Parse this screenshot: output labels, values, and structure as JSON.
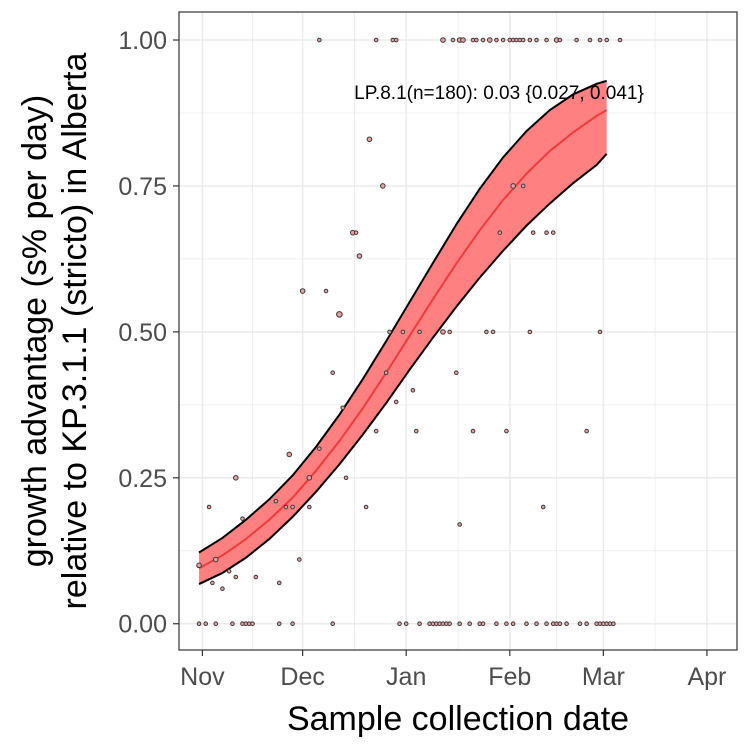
{
  "chart_data": {
    "type": "scatter",
    "xlabel": "Sample collection date",
    "ylabel_line1": "growth advantage (s% per day)",
    "ylabel_line2": "relative to KP.3.1.1 (stricto) in Alberta",
    "annotation": "LP.8.1(n=180): 0.03 {0.027, 0.041}",
    "x_ticks": [
      {
        "label": "Nov",
        "date": "2024-11-01"
      },
      {
        "label": "Dec",
        "date": "2024-12-01"
      },
      {
        "label": "Jan",
        "date": "2025-01-01"
      },
      {
        "label": "Feb",
        "date": "2025-02-01"
      },
      {
        "label": "Mar",
        "date": "2025-03-01"
      },
      {
        "label": "Apr",
        "date": "2025-04-01"
      }
    ],
    "xlim": [
      "2024-10-25",
      "2025-04-10"
    ],
    "y_ticks": [
      0.0,
      0.25,
      0.5,
      0.75,
      1.0
    ],
    "y_tick_labels": [
      "0.00",
      "0.25",
      "0.50",
      "0.75",
      "1.00"
    ],
    "ylim": [
      -0.045,
      1.048
    ],
    "grid": true,
    "colors": {
      "ribbon": "#ff8080",
      "fit_line": "#f03c3c",
      "band_edge": "#000000",
      "points": "#e8a0a0",
      "grid": "#ebebeb",
      "panel_border": "#333333"
    },
    "fit": {
      "date": [
        "2024-10-31",
        "2024-11-07",
        "2024-11-14",
        "2024-11-21",
        "2024-11-28",
        "2024-12-05",
        "2024-12-12",
        "2024-12-19",
        "2024-12-26",
        "2025-01-02",
        "2025-01-09",
        "2025-01-16",
        "2025-01-23",
        "2025-01-30",
        "2025-02-06",
        "2025-02-13",
        "2025-02-20",
        "2025-02-27",
        "2025-03-02"
      ],
      "mid": [
        0.095,
        0.117,
        0.145,
        0.178,
        0.216,
        0.262,
        0.313,
        0.369,
        0.43,
        0.493,
        0.556,
        0.617,
        0.674,
        0.726,
        0.771,
        0.81,
        0.842,
        0.87,
        0.88
      ],
      "lower": [
        0.068,
        0.087,
        0.113,
        0.145,
        0.183,
        0.226,
        0.273,
        0.324,
        0.378,
        0.435,
        0.49,
        0.543,
        0.593,
        0.639,
        0.682,
        0.72,
        0.755,
        0.786,
        0.805
      ],
      "upper": [
        0.122,
        0.147,
        0.178,
        0.213,
        0.254,
        0.303,
        0.358,
        0.419,
        0.484,
        0.551,
        0.618,
        0.684,
        0.745,
        0.799,
        0.844,
        0.88,
        0.907,
        0.925,
        0.93
      ]
    },
    "points": [
      {
        "date": "2024-10-31",
        "y": 0.0,
        "n": 1
      },
      {
        "date": "2024-11-02",
        "y": 0.0,
        "n": 1
      },
      {
        "date": "2024-11-03",
        "y": 0.2,
        "n": 1
      },
      {
        "date": "2024-11-05",
        "y": 0.0,
        "n": 1
      },
      {
        "date": "2024-11-10",
        "y": 0.0,
        "n": 1
      },
      {
        "date": "2024-11-13",
        "y": 0.0,
        "n": 1
      },
      {
        "date": "2024-11-14",
        "y": 0.0,
        "n": 1
      },
      {
        "date": "2024-11-15",
        "y": 0.0,
        "n": 1
      },
      {
        "date": "2024-11-16",
        "y": 0.0,
        "n": 1
      },
      {
        "date": "2024-11-24",
        "y": 0.0,
        "n": 1
      },
      {
        "date": "2024-11-28",
        "y": 0.0,
        "n": 1
      },
      {
        "date": "2024-12-10",
        "y": 0.0,
        "n": 1
      },
      {
        "date": "2024-12-30",
        "y": 0.0,
        "n": 1
      },
      {
        "date": "2025-01-01",
        "y": 0.0,
        "n": 1
      },
      {
        "date": "2025-01-05",
        "y": 0.0,
        "n": 1
      },
      {
        "date": "2025-01-08",
        "y": 0.0,
        "n": 1
      },
      {
        "date": "2025-01-09",
        "y": 0.0,
        "n": 1
      },
      {
        "date": "2025-01-10",
        "y": 0.0,
        "n": 1
      },
      {
        "date": "2025-01-11",
        "y": 0.0,
        "n": 1
      },
      {
        "date": "2025-01-12",
        "y": 0.0,
        "n": 1
      },
      {
        "date": "2025-01-13",
        "y": 0.0,
        "n": 1
      },
      {
        "date": "2025-01-14",
        "y": 0.0,
        "n": 1
      },
      {
        "date": "2025-01-17",
        "y": 0.0,
        "n": 1
      },
      {
        "date": "2025-01-20",
        "y": 0.0,
        "n": 1
      },
      {
        "date": "2025-01-23",
        "y": 0.0,
        "n": 1
      },
      {
        "date": "2025-01-24",
        "y": 0.0,
        "n": 1
      },
      {
        "date": "2025-01-28",
        "y": 0.0,
        "n": 1
      },
      {
        "date": "2025-01-31",
        "y": 0.0,
        "n": 1
      },
      {
        "date": "2025-02-02",
        "y": 0.0,
        "n": 1
      },
      {
        "date": "2025-02-06",
        "y": 0.0,
        "n": 1
      },
      {
        "date": "2025-02-09",
        "y": 0.0,
        "n": 1
      },
      {
        "date": "2025-02-12",
        "y": 0.0,
        "n": 1
      },
      {
        "date": "2025-02-14",
        "y": 0.0,
        "n": 1
      },
      {
        "date": "2025-02-15",
        "y": 0.0,
        "n": 1
      },
      {
        "date": "2025-02-16",
        "y": 0.0,
        "n": 1
      },
      {
        "date": "2025-02-18",
        "y": 0.0,
        "n": 1
      },
      {
        "date": "2025-02-22",
        "y": 0.0,
        "n": 1
      },
      {
        "date": "2025-02-24",
        "y": 0.0,
        "n": 1
      },
      {
        "date": "2025-02-27",
        "y": 0.0,
        "n": 1
      },
      {
        "date": "2025-02-28",
        "y": 0.0,
        "n": 1
      },
      {
        "date": "2025-03-01",
        "y": 0.0,
        "n": 1
      },
      {
        "date": "2025-03-02",
        "y": 0.0,
        "n": 1
      },
      {
        "date": "2025-03-03",
        "y": 0.0,
        "n": 1
      },
      {
        "date": "2025-03-04",
        "y": 0.0,
        "n": 1
      },
      {
        "date": "2024-10-31",
        "y": 0.1,
        "n": 2
      },
      {
        "date": "2024-11-04",
        "y": 0.07,
        "n": 1
      },
      {
        "date": "2024-11-05",
        "y": 0.11,
        "n": 2
      },
      {
        "date": "2024-11-07",
        "y": 0.06,
        "n": 1
      },
      {
        "date": "2024-11-09",
        "y": 0.09,
        "n": 1
      },
      {
        "date": "2024-11-11",
        "y": 0.08,
        "n": 1
      },
      {
        "date": "2024-11-11",
        "y": 0.25,
        "n": 2
      },
      {
        "date": "2024-11-13",
        "y": 0.18,
        "n": 1
      },
      {
        "date": "2024-11-17",
        "y": 0.08,
        "n": 1
      },
      {
        "date": "2024-11-23",
        "y": 0.21,
        "n": 1
      },
      {
        "date": "2024-11-24",
        "y": 0.07,
        "n": 1
      },
      {
        "date": "2024-11-26",
        "y": 0.2,
        "n": 1
      },
      {
        "date": "2024-11-27",
        "y": 0.29,
        "n": 2
      },
      {
        "date": "2024-11-28",
        "y": 0.2,
        "n": 1
      },
      {
        "date": "2024-11-30",
        "y": 0.11,
        "n": 1
      },
      {
        "date": "2024-12-01",
        "y": 0.57,
        "n": 2
      },
      {
        "date": "2024-12-03",
        "y": 0.25,
        "n": 2
      },
      {
        "date": "2024-12-03",
        "y": 0.2,
        "n": 1
      },
      {
        "date": "2024-12-06",
        "y": 0.3,
        "n": 1
      },
      {
        "date": "2024-12-08",
        "y": 0.57,
        "n": 1
      },
      {
        "date": "2024-12-10",
        "y": 0.43,
        "n": 1
      },
      {
        "date": "2024-12-12",
        "y": 0.53,
        "n": 3
      },
      {
        "date": "2024-12-13",
        "y": 0.37,
        "n": 1
      },
      {
        "date": "2024-12-14",
        "y": 0.25,
        "n": 1
      },
      {
        "date": "2024-12-16",
        "y": 0.67,
        "n": 2
      },
      {
        "date": "2024-12-17",
        "y": 0.67,
        "n": 1
      },
      {
        "date": "2024-12-18",
        "y": 0.63,
        "n": 2
      },
      {
        "date": "2024-12-20",
        "y": 0.2,
        "n": 1
      },
      {
        "date": "2024-12-21",
        "y": 0.83,
        "n": 2
      },
      {
        "date": "2024-12-23",
        "y": 0.33,
        "n": 1
      },
      {
        "date": "2024-12-25",
        "y": 0.75,
        "n": 2
      },
      {
        "date": "2024-12-26",
        "y": 0.43,
        "n": 1
      },
      {
        "date": "2024-12-27",
        "y": 0.5,
        "n": 1
      },
      {
        "date": "2024-12-29",
        "y": 0.38,
        "n": 1
      },
      {
        "date": "2024-12-31",
        "y": 0.5,
        "n": 1
      },
      {
        "date": "2025-01-03",
        "y": 0.4,
        "n": 1
      },
      {
        "date": "2025-01-04",
        "y": 0.33,
        "n": 1
      },
      {
        "date": "2025-01-05",
        "y": 0.5,
        "n": 1
      },
      {
        "date": "2025-01-12",
        "y": 0.5,
        "n": 2
      },
      {
        "date": "2025-01-14",
        "y": 0.5,
        "n": 1
      },
      {
        "date": "2025-01-16",
        "y": 0.43,
        "n": 1
      },
      {
        "date": "2025-01-17",
        "y": 0.17,
        "n": 1
      },
      {
        "date": "2025-01-21",
        "y": 0.33,
        "n": 1
      },
      {
        "date": "2025-01-25",
        "y": 0.5,
        "n": 1
      },
      {
        "date": "2025-01-27",
        "y": 0.5,
        "n": 1
      },
      {
        "date": "2025-01-29",
        "y": 0.67,
        "n": 1
      },
      {
        "date": "2025-01-31",
        "y": 0.33,
        "n": 1
      },
      {
        "date": "2025-02-02",
        "y": 0.75,
        "n": 2
      },
      {
        "date": "2025-02-05",
        "y": 0.75,
        "n": 1
      },
      {
        "date": "2025-02-07",
        "y": 0.5,
        "n": 1
      },
      {
        "date": "2025-02-08",
        "y": 0.67,
        "n": 1
      },
      {
        "date": "2025-02-11",
        "y": 0.2,
        "n": 1
      },
      {
        "date": "2025-02-12",
        "y": 0.67,
        "n": 1
      },
      {
        "date": "2025-02-14",
        "y": 0.67,
        "n": 1
      },
      {
        "date": "2025-02-24",
        "y": 0.33,
        "n": 1
      },
      {
        "date": "2025-02-28",
        "y": 0.5,
        "n": 1
      },
      {
        "date": "2024-12-06",
        "y": 1.0,
        "n": 1
      },
      {
        "date": "2024-12-23",
        "y": 1.0,
        "n": 1
      },
      {
        "date": "2024-12-28",
        "y": 1.0,
        "n": 1
      },
      {
        "date": "2024-12-29",
        "y": 1.0,
        "n": 1
      },
      {
        "date": "2025-01-12",
        "y": 1.0,
        "n": 2
      },
      {
        "date": "2025-01-15",
        "y": 1.0,
        "n": 1
      },
      {
        "date": "2025-01-17",
        "y": 1.0,
        "n": 2
      },
      {
        "date": "2025-01-18",
        "y": 1.0,
        "n": 2
      },
      {
        "date": "2025-01-21",
        "y": 1.0,
        "n": 1
      },
      {
        "date": "2025-01-22",
        "y": 1.0,
        "n": 1
      },
      {
        "date": "2025-01-24",
        "y": 1.0,
        "n": 1
      },
      {
        "date": "2025-01-26",
        "y": 1.0,
        "n": 2
      },
      {
        "date": "2025-01-28",
        "y": 1.0,
        "n": 1
      },
      {
        "date": "2025-01-30",
        "y": 1.0,
        "n": 1
      },
      {
        "date": "2025-02-01",
        "y": 1.0,
        "n": 1
      },
      {
        "date": "2025-02-02",
        "y": 1.0,
        "n": 1
      },
      {
        "date": "2025-02-03",
        "y": 1.0,
        "n": 1
      },
      {
        "date": "2025-02-04",
        "y": 1.0,
        "n": 1
      },
      {
        "date": "2025-02-05",
        "y": 1.0,
        "n": 1
      },
      {
        "date": "2025-02-07",
        "y": 1.0,
        "n": 1
      },
      {
        "date": "2025-02-09",
        "y": 1.0,
        "n": 1
      },
      {
        "date": "2025-02-12",
        "y": 1.0,
        "n": 1
      },
      {
        "date": "2025-02-15",
        "y": 1.0,
        "n": 2
      },
      {
        "date": "2025-02-16",
        "y": 1.0,
        "n": 1
      },
      {
        "date": "2025-02-21",
        "y": 1.0,
        "n": 1
      },
      {
        "date": "2025-02-25",
        "y": 1.0,
        "n": 1
      },
      {
        "date": "2025-02-28",
        "y": 1.0,
        "n": 1
      },
      {
        "date": "2025-03-02",
        "y": 1.0,
        "n": 1
      },
      {
        "date": "2025-03-06",
        "y": 1.0,
        "n": 1
      }
    ]
  }
}
